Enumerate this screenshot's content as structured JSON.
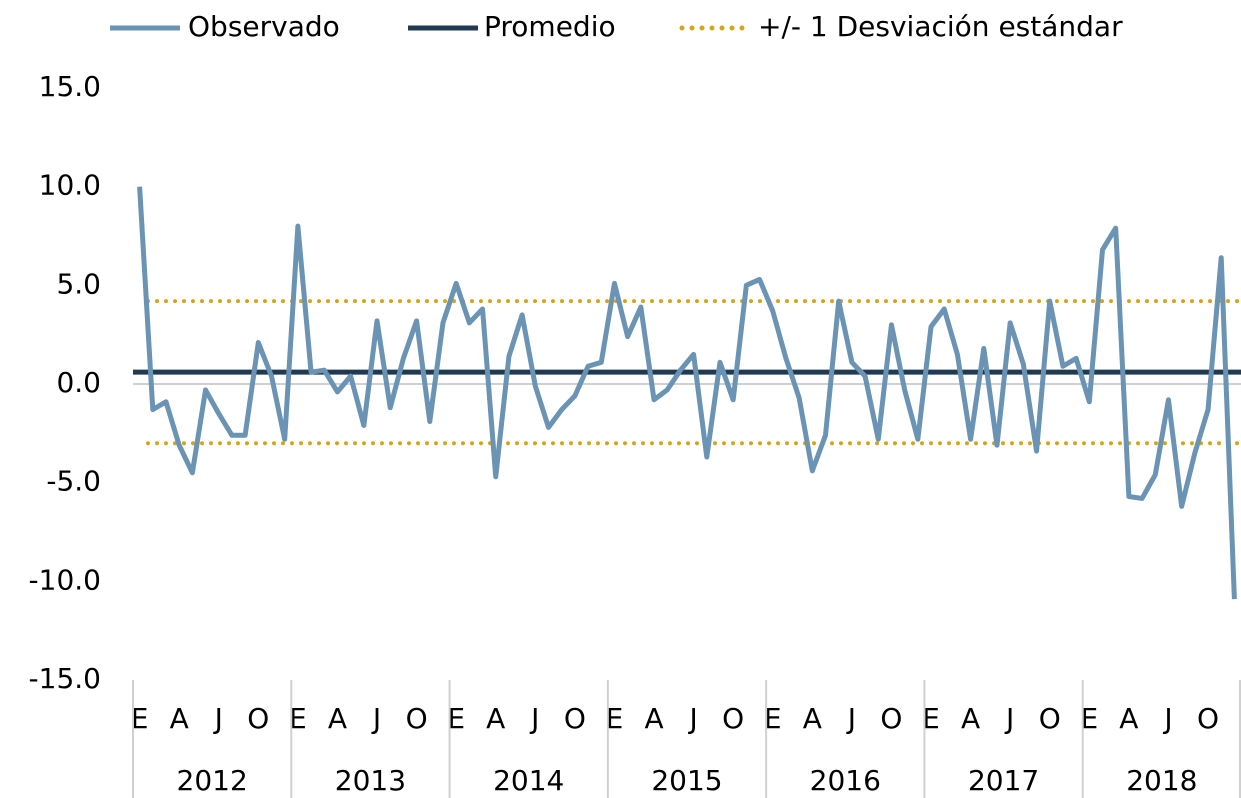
{
  "chart_data": {
    "type": "line",
    "categories": [
      "E",
      null,
      null,
      "A",
      null,
      null,
      "J",
      null,
      null,
      "O",
      null,
      null,
      "E",
      null,
      null,
      "A",
      null,
      null,
      "J",
      null,
      null,
      "O",
      null,
      null,
      "E",
      null,
      null,
      "A",
      null,
      null,
      "J",
      null,
      null,
      "O",
      null,
      null,
      "E",
      null,
      null,
      "A",
      null,
      null,
      "J",
      null,
      null,
      "O",
      null,
      null,
      "E",
      null,
      null,
      "A",
      null,
      null,
      "J",
      null,
      null,
      "O",
      null,
      null,
      "E",
      null,
      null,
      "A",
      null,
      null,
      "J",
      null,
      null,
      "O",
      null,
      null,
      "E",
      null,
      null,
      "A",
      null,
      null,
      "J",
      null,
      null,
      "O",
      null,
      null
    ],
    "year_groups": [
      "2012",
      "2013",
      "2014",
      "2015",
      "2016",
      "2017",
      "2018"
    ],
    "series": [
      {
        "name": "Observado",
        "color": "#6a93b4",
        "values": [
          10.0,
          -1.3,
          -0.9,
          -3.1,
          -4.5,
          -0.3,
          -1.5,
          -2.6,
          -2.6,
          2.1,
          0.4,
          -2.8,
          8.0,
          0.6,
          0.7,
          -0.4,
          0.4,
          -2.1,
          3.2,
          -1.2,
          1.3,
          3.2,
          -1.9,
          3.1,
          5.1,
          3.1,
          3.8,
          -4.7,
          1.4,
          3.5,
          -0.1,
          -2.2,
          -1.3,
          -0.6,
          0.9,
          1.1,
          5.1,
          2.4,
          3.9,
          -0.8,
          -0.3,
          0.7,
          1.5,
          -3.7,
          1.1,
          -0.8,
          5.0,
          5.3,
          3.7,
          1.3,
          -0.7,
          -4.4,
          -2.6,
          4.2,
          1.1,
          0.4,
          -2.8,
          3.0,
          -0.3,
          -2.8,
          2.9,
          3.8,
          1.5,
          -2.8,
          1.8,
          -3.1,
          3.1,
          1.0,
          -3.4,
          4.2,
          0.9,
          1.3,
          -0.9,
          6.8,
          7.9,
          -5.7,
          -5.8,
          -4.6,
          -0.8,
          -6.2,
          -3.5,
          -1.3,
          6.4,
          -10.9
        ]
      },
      {
        "name": "Promedio",
        "color": "#1f3a52",
        "value": 0.6
      },
      {
        "name": "+/- 1 Desviación estándar",
        "color": "#d4a514",
        "bounds": [
          -3.0,
          4.2
        ],
        "style": "dotted"
      }
    ],
    "ylim": [
      -15,
      15
    ],
    "yticks": [
      {
        "value": -15,
        "label": "-15.0"
      },
      {
        "value": -10,
        "label": "-10.0"
      },
      {
        "value": -5,
        "label": "-5.0"
      },
      {
        "value": 0,
        "label": "0.0"
      },
      {
        "value": 5,
        "label": "5.0"
      },
      {
        "value": 10,
        "label": "10.0"
      },
      {
        "value": 15,
        "label": "15.0"
      }
    ],
    "grid": false
  }
}
